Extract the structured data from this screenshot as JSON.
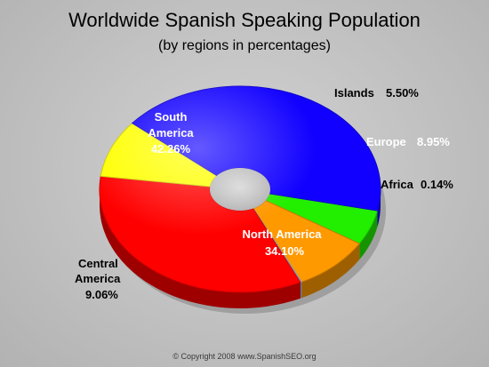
{
  "title": "Worldwide Spanish Speaking Population",
  "subtitle": "(by regions in percentages)",
  "copyright": "© Copyright 2008 www.SpanishSEO.org",
  "chart_data": {
    "type": "pie",
    "style": "3d-donut",
    "title": "Worldwide Spanish Speaking Population",
    "subtitle": "(by regions in percentages)",
    "series": [
      {
        "name": "Islands",
        "value": 5.5,
        "label": "5.50%",
        "color": "#22ee00"
      },
      {
        "name": "Europe",
        "value": 8.95,
        "label": "8.95%",
        "color": "#ff9900"
      },
      {
        "name": "Africa",
        "value": 0.14,
        "label": "0.14%",
        "color": "#8fc8ff"
      },
      {
        "name": "North America",
        "value": 34.1,
        "label": "34.10%",
        "color": "#ff0000"
      },
      {
        "name": "Central America",
        "value": 9.06,
        "label": "9.06%",
        "color": "#ffff00"
      },
      {
        "name": "South America",
        "value": 42.26,
        "label": "42.26%",
        "color": "#1100ff"
      }
    ],
    "labels": {
      "islands": {
        "name": "Islands",
        "value": "5.50%"
      },
      "europe": {
        "name": "Europe",
        "value": "8.95%"
      },
      "africa": {
        "name": "Africa",
        "value": "0.14%"
      },
      "north_america": {
        "line1": "North America",
        "line2": "34.10%"
      },
      "central_america": {
        "line1": "Central",
        "line2": "America",
        "line3": "9.06%"
      },
      "south_america": {
        "line1": "South",
        "line2": "America",
        "line3": "42.26%"
      }
    }
  }
}
